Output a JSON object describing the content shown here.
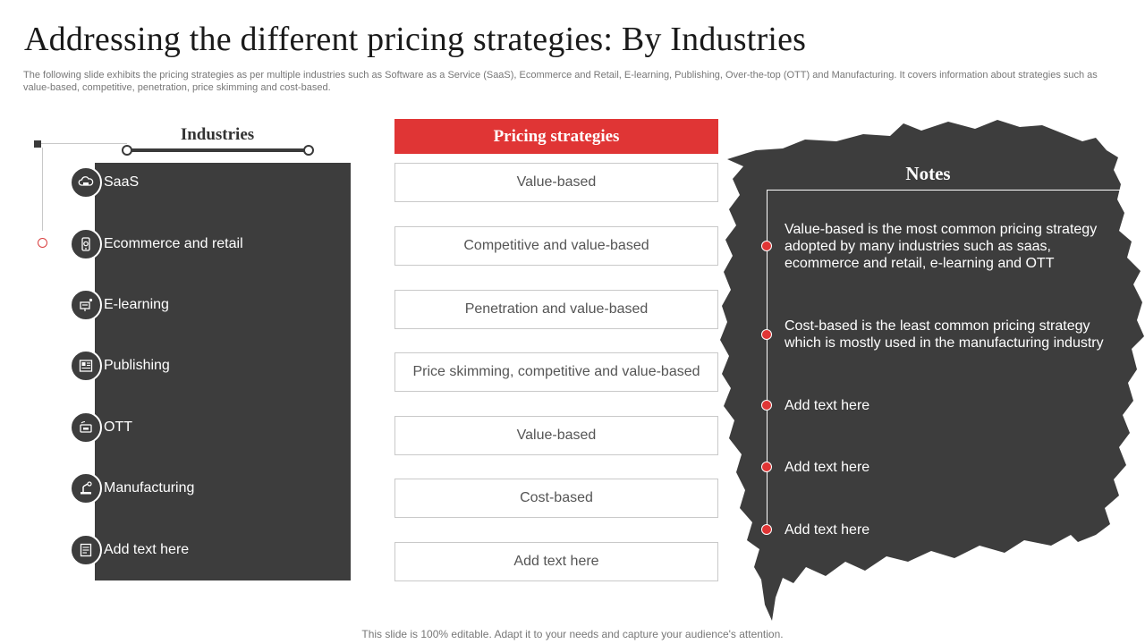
{
  "title": "Addressing the different pricing strategies: By Industries",
  "subtitle": "The following slide exhibits the pricing strategies as per multiple industries such as Software as a Service (SaaS), Ecommerce and Retail, E-learning, Publishing, Over-the-top (OTT) and Manufacturing. It covers information about strategies such as value-based, competitive, penetration, price skimming and cost-based.",
  "industries": {
    "header": "Industries",
    "items": [
      {
        "label": "SaaS",
        "icon": "cloud-saas-icon"
      },
      {
        "label": "Ecommerce and retail",
        "icon": "mobile-shop-icon"
      },
      {
        "label": "E-learning",
        "icon": "teacher-board-icon"
      },
      {
        "label": "Publishing",
        "icon": "newspaper-icon"
      },
      {
        "label": "OTT",
        "icon": "streaming-screen-icon"
      },
      {
        "label": "Manufacturing",
        "icon": "robotic-arm-icon"
      },
      {
        "label": "Add text here",
        "icon": "document-icon"
      }
    ]
  },
  "pricing": {
    "header": "Pricing strategies",
    "items": [
      "Value-based",
      "Competitive and value-based",
      "Penetration and value-based",
      "Price skimming, competitive and value-based",
      "Value-based",
      "Cost-based",
      "Add text here"
    ]
  },
  "notes": {
    "title": "Notes",
    "items": [
      "Value-based is the most common pricing strategy adopted by many industries such as saas, ecommerce and retail, e-learning and OTT",
      "Cost-based is the least common pricing strategy which is mostly used in the manufacturing  industry",
      "Add text here",
      "Add text here",
      "Add text here"
    ]
  },
  "footer": "This slide is 100% editable. Adapt it to your needs and capture your audience's attention.",
  "colors": {
    "accent": "#e03535",
    "dark": "#3d3d3d"
  }
}
